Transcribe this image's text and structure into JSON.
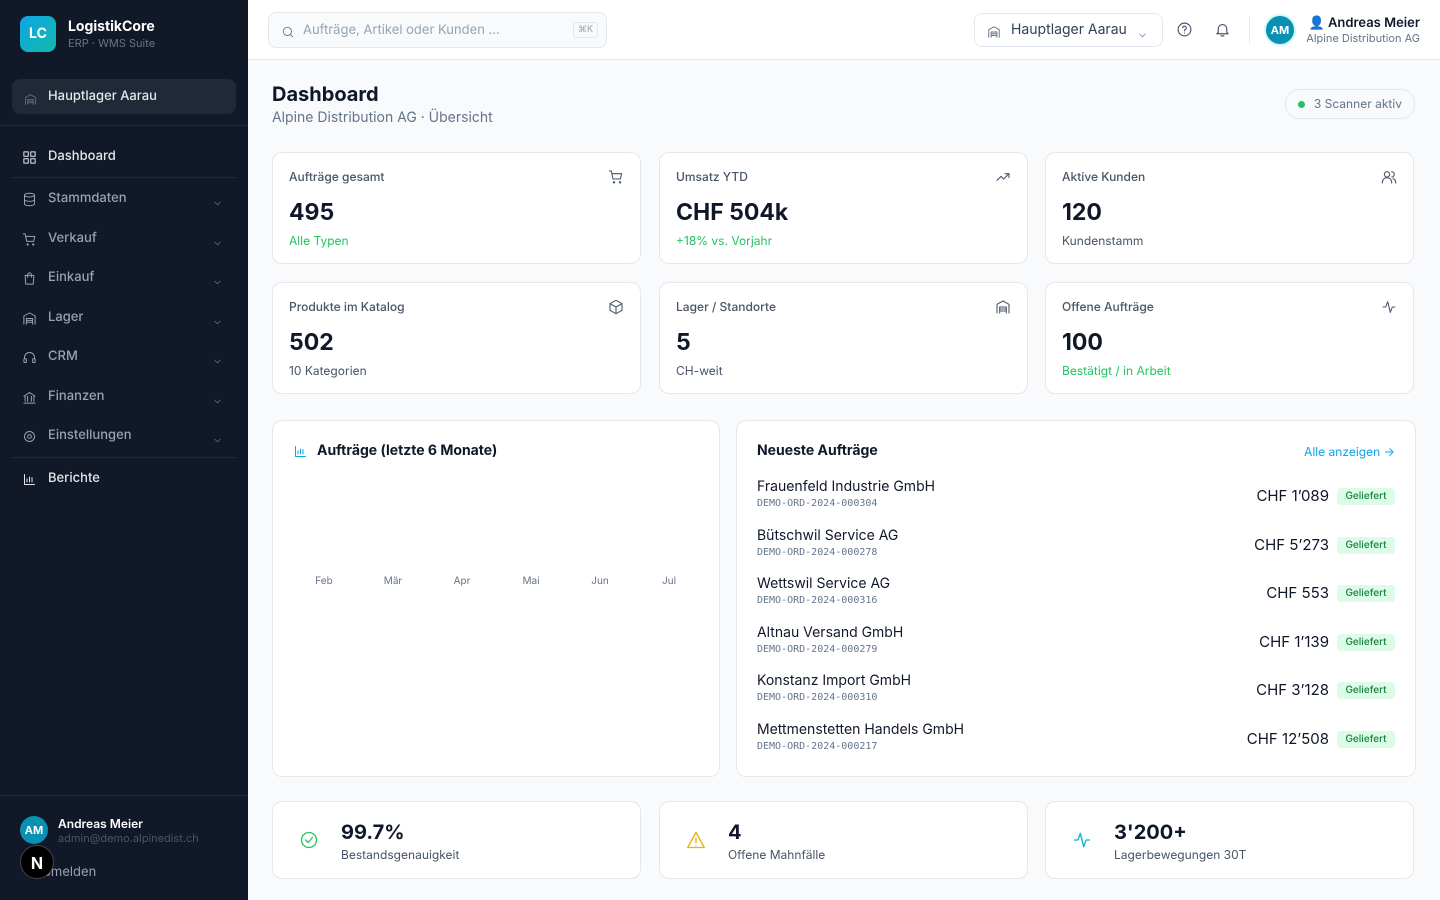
{
  "sidebar": {
    "logo": "LC",
    "brand": "LogistikCore",
    "tagline": "ERP · WMS Suite",
    "location": "Hauptlager Aarau",
    "nav": [
      {
        "label": "Dashboard",
        "active": true
      },
      {
        "label": "Stammdaten",
        "has_submenu": true
      },
      {
        "label": "Verkauf",
        "has_submenu": true
      },
      {
        "label": "Einkauf",
        "has_submenu": true
      },
      {
        "label": "Lager",
        "has_submenu": true
      },
      {
        "label": "CRM",
        "has_submenu": true
      },
      {
        "label": "Finanzen",
        "has_submenu": true
      },
      {
        "label": "Einstellungen",
        "has_submenu": true
      },
      {
        "label": "Berichte"
      }
    ],
    "user": {
      "initials": "AM",
      "name": "Andreas Meier",
      "email": "admin@demo.alpinedist.ch",
      "logout": "Abmelden"
    }
  },
  "topbar": {
    "search_placeholder": "Aufträge, Artikel oder Kunden ...",
    "shortcut": "⌘K",
    "warehouse": "Hauptlager Aarau",
    "user": {
      "initials": "AM",
      "name": "👤 Andreas Meier",
      "company": "Alpine Distribution AG"
    }
  },
  "header": {
    "title": "Dashboard",
    "subtitle": "Alpine Distribution AG · Übersicht",
    "status": "3 Scanner aktiv"
  },
  "kpis": [
    {
      "label": "Aufträge gesamt",
      "value": "495",
      "note": "Alle Typen",
      "note_color": "#22c55e"
    },
    {
      "label": "Umsatz YTD",
      "value": "CHF 504k",
      "note": "+18% vs. Vorjahr",
      "note_color": "#22c55e"
    },
    {
      "label": "Aktive Kunden",
      "value": "120",
      "note": "Kundenstamm",
      "note_color": "#475569"
    },
    {
      "label": "Produkte im Katalog",
      "value": "502",
      "note": "10 Kategorien",
      "note_color": "#475569"
    },
    {
      "label": "Lager / Standorte",
      "value": "5",
      "note": "CH-weit",
      "note_color": "#475569"
    },
    {
      "label": "Offene Aufträge",
      "value": "100",
      "note": "Bestätigt / in Arbeit",
      "note_color": "#22c55e"
    }
  ],
  "orders_chart": {
    "title": "Aufträge (letzte 6 Monate)",
    "months": [
      "Feb",
      "Mär",
      "Apr",
      "Mai",
      "Jun",
      "Jul"
    ]
  },
  "recent_orders": {
    "title": "Neueste Aufträge",
    "link": "Alle anzeigen →",
    "rows": [
      {
        "customer": "Frauenfeld Industrie GmbH",
        "number": "DEMO-ORD-2024-000304",
        "amount": "CHF 1’089",
        "status": "Geliefert"
      },
      {
        "customer": "Bütschwil Service AG",
        "number": "DEMO-ORD-2024-000278",
        "amount": "CHF 5’273",
        "status": "Geliefert"
      },
      {
        "customer": "Wettswil Service AG",
        "number": "DEMO-ORD-2024-000316",
        "amount": "CHF 553",
        "status": "Geliefert"
      },
      {
        "customer": "Altnau Versand GmbH",
        "number": "DEMO-ORD-2024-000279",
        "amount": "CHF 1’139",
        "status": "Geliefert"
      },
      {
        "customer": "Konstanz Import GmbH",
        "number": "DEMO-ORD-2024-000310",
        "amount": "CHF 3’128",
        "status": "Geliefert"
      },
      {
        "customer": "Mettmenstetten Handels GmbH",
        "number": "DEMO-ORD-2024-000217",
        "amount": "CHF 12’508",
        "status": "Geliefert"
      }
    ]
  },
  "stats": [
    {
      "value": "99.7%",
      "label": "Bestandsgenauigkeit",
      "icon_color": "#22c55e"
    },
    {
      "value": "4",
      "label": "Offene Mahnfälle",
      "icon_color": "#eab308"
    },
    {
      "value": "3'200+",
      "label": "Lagerbewegungen 30T",
      "icon_color": "#06b6d4"
    }
  ]
}
